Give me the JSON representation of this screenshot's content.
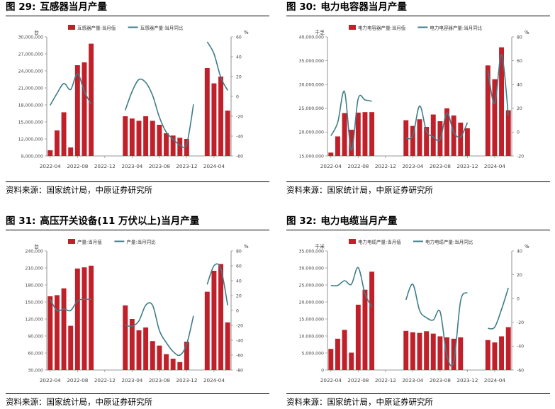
{
  "source_label": "资料来源：国家统计局，中原证券研究所",
  "colors": {
    "bar": "#c0202a",
    "line": "#3d7e88",
    "axis": "#777777"
  },
  "charts": [
    {
      "fig": "图 29:",
      "title": "互感器当月产量",
      "chart_data": {
        "type": "bar",
        "left_unit": "台",
        "right_unit": "%",
        "legend": [
          "互感器产量:当月值",
          "互感器产量:当月同比"
        ],
        "x_ticks": [
          "2022-04",
          "2022-08",
          "2022-12",
          "2023-04",
          "2023-08",
          "2023-12",
          "2024-04"
        ],
        "left_ticks": [
          "9,000,000",
          "12,000,000",
          "15,000,000",
          "18,000,000",
          "21,000,000",
          "24,000,000",
          "27,000,000",
          "30,000,000"
        ],
        "right_ticks": [
          "-60",
          "-40",
          "-20",
          "0",
          "20",
          "40",
          "60"
        ],
        "ylim": [
          9000000,
          30000000
        ],
        "y2lim": [
          -60,
          60
        ],
        "bars": [
          10000000,
          13500000,
          16700000,
          10500000,
          25000000,
          25500000,
          28800000,
          null,
          null,
          null,
          null,
          16000000,
          15600000,
          15200000,
          16000000,
          15200000,
          14500000,
          13000000,
          12600000,
          12200000,
          12000000,
          null,
          null,
          24500000,
          21800000,
          23000000,
          17000000
        ],
        "line": [
          -9,
          3,
          13,
          7,
          23,
          5,
          -8,
          null,
          null,
          null,
          null,
          -14,
          5,
          17,
          14,
          1,
          -21,
          -36,
          -43,
          -49,
          -48,
          -8,
          null,
          55,
          43,
          19,
          6
        ]
      }
    },
    {
      "fig": "图 30:",
      "title": "电力电容器当月产量",
      "chart_data": {
        "type": "bar",
        "left_unit": "千乏",
        "right_unit": "%",
        "legend": [
          "电力电容器产量:当月值",
          "电力电容器产量:当月同比"
        ],
        "x_ticks": [
          "2022-04",
          "2022-08",
          "2022-12",
          "2023-04",
          "2023-08",
          "2023-12",
          "2024-04"
        ],
        "left_ticks": [
          "15,000,000",
          "20,000,000",
          "25,000,000",
          "30,000,000",
          "35,000,000",
          "40,000,000"
        ],
        "right_ticks": [
          "-20",
          "0",
          "20",
          "40",
          "60",
          "80"
        ],
        "ylim": [
          15000000,
          40000000
        ],
        "y2lim": [
          -20,
          80
        ],
        "bars": [
          15700000,
          19100000,
          24000000,
          20500000,
          24100000,
          24200000,
          24200000,
          null,
          null,
          null,
          null,
          22500000,
          21300000,
          22700000,
          21100000,
          23700000,
          22300000,
          25000000,
          23500000,
          22000000,
          20800000,
          null,
          null,
          34000000,
          31100000,
          37800000,
          24600000
        ],
        "line": [
          -3,
          8,
          34,
          -15,
          28,
          27,
          26,
          null,
          null,
          null,
          null,
          -5,
          -3,
          22,
          1,
          -4,
          -6,
          16,
          0,
          -4,
          8,
          null,
          null,
          52,
          24,
          65,
          14
        ]
      }
    },
    {
      "fig": "图 31:",
      "title": "高压开关设备(11 万伏以上)当月产量",
      "chart_data": {
        "type": "bar",
        "left_unit": "台",
        "right_unit": "%",
        "legend": [
          "产量:当月值",
          "产量:当月同比"
        ],
        "x_ticks": [
          "2022-04",
          "2022-08",
          "2022-12",
          "2023-04",
          "2023-08",
          "2023-12",
          "2024-04"
        ],
        "left_ticks": [
          "30,000",
          "60,000",
          "90,000",
          "120,000",
          "150,000",
          "180,000",
          "210,000",
          "240,000"
        ],
        "right_ticks": [
          "-80",
          "-60",
          "-40",
          "-20",
          "0",
          "20",
          "40",
          "60",
          "80"
        ],
        "ylim": [
          30000,
          240000
        ],
        "y2lim": [
          -80,
          80
        ],
        "bars": [
          160000,
          162000,
          174000,
          108000,
          209000,
          211000,
          214000,
          null,
          null,
          null,
          null,
          144000,
          120000,
          100000,
          105000,
          81000,
          73000,
          58000,
          50000,
          44000,
          80000,
          null,
          null,
          168000,
          205000,
          217000,
          114000
        ],
        "line": [
          15,
          0,
          2,
          0,
          13,
          15,
          15,
          null,
          null,
          null,
          null,
          -20,
          -21,
          -14,
          7,
          7,
          -27,
          -43,
          -55,
          -60,
          -45,
          -7,
          null,
          35,
          60,
          56,
          7
        ]
      }
    },
    {
      "fig": "图 32:",
      "title": "电力电缆当月产量",
      "chart_data": {
        "type": "bar",
        "left_unit": "千米",
        "right_unit": "%",
        "legend": [
          "电力电缆产量:当月值",
          "电力电缆产量:当月同比"
        ],
        "x_ticks": [
          "2022-04",
          "2022-08",
          "2022-12",
          "2023-04",
          "2023-08",
          "2023-12",
          "2024-04"
        ],
        "left_ticks": [
          "0",
          "5,000,000",
          "10,000,000",
          "15,000,000",
          "20,000,000",
          "25,000,000",
          "30,000,000",
          "35,000,000"
        ],
        "right_ticks": [
          "-60",
          "-40",
          "-20",
          "0",
          "20",
          "40"
        ],
        "ylim": [
          0,
          35000000
        ],
        "y2lim": [
          -60,
          40
        ],
        "bars": [
          6200000,
          9200000,
          11800000,
          5100000,
          19200000,
          23600000,
          28900000,
          null,
          null,
          null,
          null,
          11500000,
          11100000,
          10900000,
          11400000,
          10700000,
          9900000,
          9600000,
          9200000,
          9600000,
          null,
          null,
          null,
          8800000,
          8100000,
          9900000,
          12600000
        ],
        "line": [
          11,
          11,
          15,
          12,
          26,
          4,
          -7,
          null,
          null,
          null,
          null,
          -1,
          12,
          -10,
          -16,
          -18,
          -11,
          -48,
          -53,
          -2,
          5,
          null,
          null,
          -25,
          -24,
          -9,
          9
        ]
      }
    }
  ]
}
